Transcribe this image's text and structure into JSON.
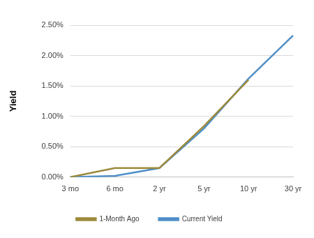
{
  "chart_data": {
    "type": "line",
    "y_label": "Yield",
    "categories": [
      "3 mo",
      "6 mo",
      "2 yr",
      "5 yr",
      "10 yr",
      "30 yr"
    ],
    "series": [
      {
        "name": "Current Yield",
        "color": "#4f8fc8",
        "values": [
          0.0,
          0.02,
          0.15,
          0.8,
          1.62,
          2.33
        ]
      },
      {
        "name": "1-Month Ago",
        "color": "#9c8a3c",
        "values": [
          0.0,
          0.15,
          0.15,
          0.84,
          1.6,
          null
        ]
      }
    ],
    "ylim": [
      0,
      2.5
    ],
    "yticks": [
      {
        "value": 0,
        "label": "0.00%"
      },
      {
        "value": 0.5,
        "label": "0.50%"
      },
      {
        "value": 1,
        "label": "1.00%"
      },
      {
        "value": 1.5,
        "label": "1.50%"
      },
      {
        "value": 2,
        "label": "2.00%"
      },
      {
        "value": 2.5,
        "label": "2.50%"
      }
    ],
    "grid": true,
    "legend": "bottom"
  }
}
